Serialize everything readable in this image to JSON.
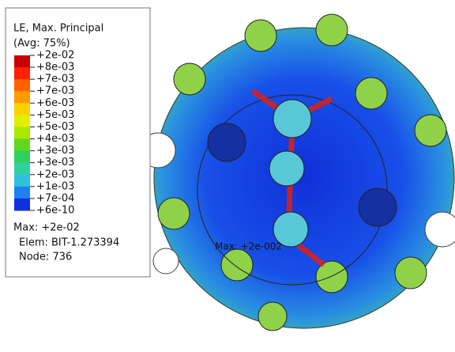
{
  "legend": {
    "title": "LE, Max. Principal",
    "subtitle": "(Avg: 75%)",
    "labels": [
      "+2e-02",
      "+8e-03",
      "+7e-03",
      "+7e-03",
      "+6e-03",
      "+5e-03",
      "+5e-03",
      "+4e-03",
      "+3e-03",
      "+3e-03",
      "+2e-03",
      "+1e-03",
      "+7e-04",
      "+6e-10"
    ],
    "max": "Max: +2e-02",
    "elem": "Elem: BIT-1.273394",
    "node": "Node: 736"
  },
  "annotation": "Max: +2e-002"
}
